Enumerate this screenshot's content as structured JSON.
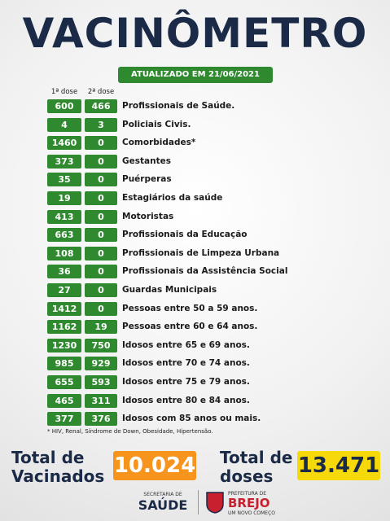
{
  "header": {
    "title": "VACINÔMETRO",
    "updated": "ATUALIZADO EM 21/06/2021"
  },
  "table": {
    "columns": [
      "1ª dose",
      "2ª dose"
    ],
    "rows": [
      [
        "600",
        "466",
        "Profissionais de Saúde."
      ],
      [
        "4",
        "3",
        "Policiais Civis."
      ],
      [
        "1460",
        "0",
        "Comorbidades*"
      ],
      [
        "373",
        "0",
        "Gestantes"
      ],
      [
        "35",
        "0",
        "Puérperas"
      ],
      [
        "19",
        "0",
        "Estagiários da saúde"
      ],
      [
        "413",
        "0",
        "Motoristas"
      ],
      [
        "663",
        "0",
        "Profissionais da Educação"
      ],
      [
        "108",
        "0",
        "Profissionais de Limpeza Urbana"
      ],
      [
        "36",
        "0",
        "Profissionais da Assistência Social"
      ],
      [
        "27",
        "0",
        "Guardas Municipais"
      ],
      [
        "1412",
        "0",
        "Pessoas entre 50 a 59 anos."
      ],
      [
        "1162",
        "19",
        "Pessoas entre 60 e 64 anos."
      ],
      [
        "1230",
        "750",
        "Idosos entre 65 e 69 anos."
      ],
      [
        "985",
        "929",
        "Idosos entre 70 e 74 anos."
      ],
      [
        "655",
        "593",
        "Idosos entre 75 e 79 anos."
      ],
      [
        "465",
        "311",
        "Idosos entre 80 e 84 anos."
      ],
      [
        "377",
        "376",
        "Idosos com 85 anos ou mais."
      ]
    ],
    "footnote": "* HIV, Renal, Síndrome de Down, Obesidade, Hipertensão."
  },
  "totals": {
    "vaccinated_label": [
      "Total de",
      "Vacinados"
    ],
    "vaccinated": "10.024",
    "doses_label": [
      "Total de",
      "doses"
    ],
    "doses": "13.471"
  },
  "footer": {
    "secretaria": [
      "SECRETARIA DE",
      "SAÚDE"
    ],
    "prefeitura": [
      "PREFEITURA DE",
      "BREJO",
      "UM NOVO COMEÇO"
    ]
  }
}
